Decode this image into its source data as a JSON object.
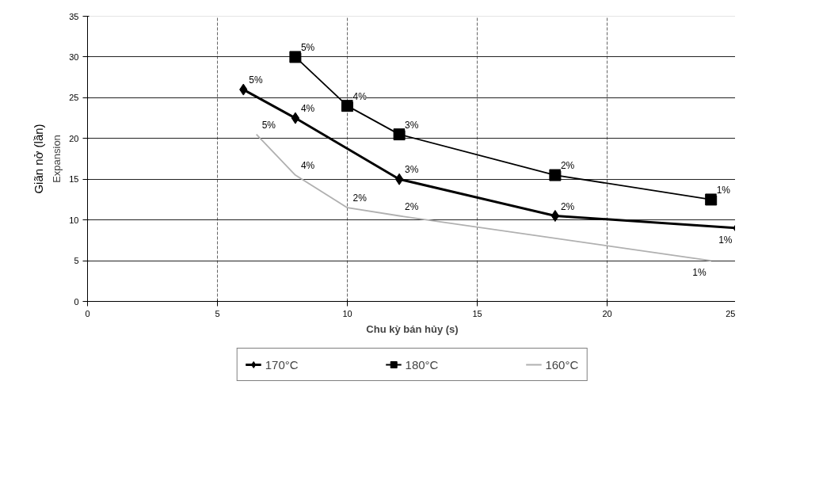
{
  "chart_data": {
    "type": "line",
    "xlabel": "Chu kỳ bán hủy (s)",
    "ylabel": "Expansion",
    "annotations": [
      "Giãn nở (lần)",
      {
        "text": "5%",
        "x": 6,
        "y": 26
      },
      {
        "text": "4%",
        "x": 8,
        "y": 22.5
      },
      {
        "text": "3%",
        "x": 12,
        "y": 15
      },
      {
        "text": "2%",
        "x": 18,
        "y": 10.5
      },
      {
        "text": "1%",
        "x": 25,
        "y": 9
      },
      {
        "text": "5%",
        "x": 8,
        "y": 30
      },
      {
        "text": "4%",
        "x": 10,
        "y": 24
      },
      {
        "text": "3%",
        "x": 12,
        "y": 20.5
      },
      {
        "text": "2%",
        "x": 18,
        "y": 15.5
      },
      {
        "text": "1%",
        "x": 24,
        "y": 12.5
      },
      {
        "text": "5%",
        "x": 6.5,
        "y": 20.5
      },
      {
        "text": "4%",
        "x": 8,
        "y": 15.5
      },
      {
        "text": "2%",
        "x": 10,
        "y": 11.5
      },
      {
        "text": "2%",
        "x": 12,
        "y": 10.5
      },
      {
        "text": "1%",
        "x": 24,
        "y": 5
      }
    ],
    "xlim": [
      0,
      25
    ],
    "xticks": [
      0,
      5,
      10,
      15,
      20,
      25
    ],
    "ylim": [
      0,
      35
    ],
    "yticks": [
      0,
      5,
      10,
      15,
      20,
      25,
      30,
      35
    ],
    "grid": true,
    "legend": "bottom",
    "series": [
      {
        "name": "170°C",
        "color": "#000000",
        "marker": "diamond",
        "x": [
          6,
          8,
          12,
          18,
          25
        ],
        "values": [
          26,
          22.5,
          15,
          10.5,
          9
        ]
      },
      {
        "name": "180°C",
        "color": "#000000",
        "marker": "square",
        "x": [
          8,
          10,
          12,
          18,
          24
        ],
        "values": [
          30,
          24,
          20.5,
          15.5,
          12.5
        ]
      },
      {
        "name": "160°C",
        "color": "#b0b0b0",
        "marker": "none",
        "x": [
          6.5,
          8,
          10,
          12,
          24
        ],
        "values": [
          20.5,
          15.5,
          11.5,
          10.5,
          5
        ]
      }
    ]
  }
}
